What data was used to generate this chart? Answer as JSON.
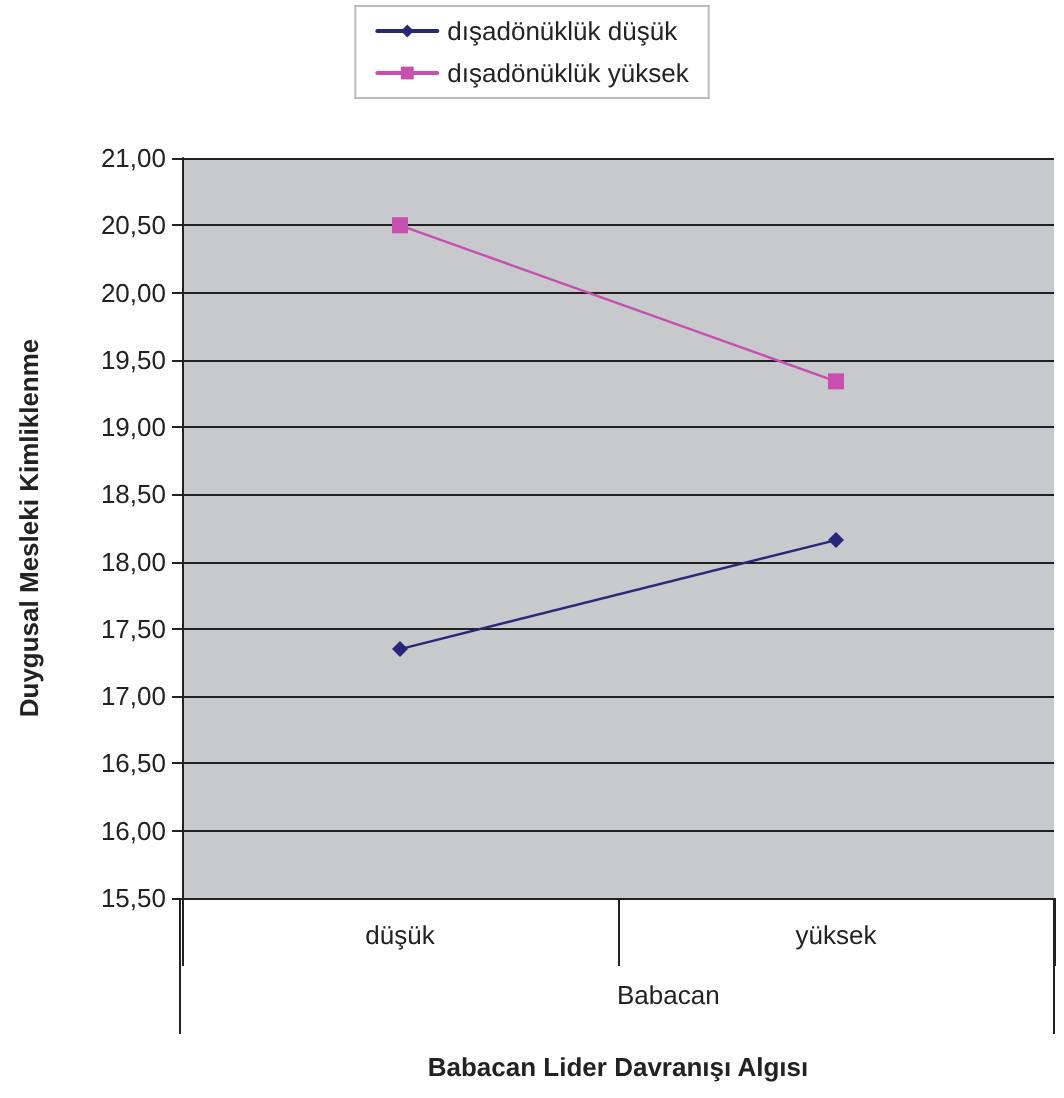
{
  "chart_data": {
    "type": "line",
    "xlabel": "Babacan Lider Davranışı Algısı",
    "ylabel": "Duygusal Mesleki Kimliklenme",
    "categories": [
      "düşük",
      "yüksek"
    ],
    "series": [
      {
        "name": "dışadönüklük düşük",
        "color": "#27277a",
        "values": [
          17.35,
          18.16
        ],
        "marker": "diamond"
      },
      {
        "name": "dışadönüklük yüksek",
        "color": "#c64fb0",
        "values": [
          20.5,
          19.34
        ],
        "marker": "square"
      }
    ],
    "ylim": [
      15.5,
      21
    ],
    "yticks": [
      {
        "value": 15.5,
        "label": "15,50"
      },
      {
        "value": 16,
        "label": "16,00"
      },
      {
        "value": 16.5,
        "label": "16,50"
      },
      {
        "value": 17,
        "label": "17,00"
      },
      {
        "value": 17.5,
        "label": "17,50"
      },
      {
        "value": 18,
        "label": "18,00"
      },
      {
        "value": 18.5,
        "label": "18,50"
      },
      {
        "value": 19,
        "label": "19,00"
      },
      {
        "value": 19.5,
        "label": "19,50"
      },
      {
        "value": 20,
        "label": "20,00"
      },
      {
        "value": 20.5,
        "label": "20,50"
      },
      {
        "value": 21,
        "label": "21,00"
      }
    ],
    "annotations": [
      "Babacan"
    ],
    "grid": "y",
    "legend": "top",
    "line_style": "solid"
  }
}
